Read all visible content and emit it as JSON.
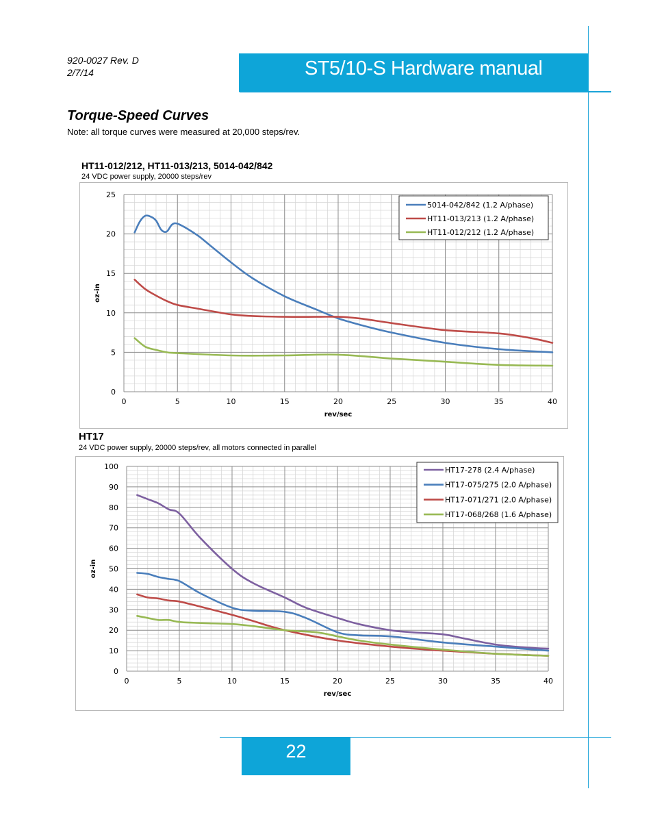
{
  "header": {
    "doc_number": "920-0027 Rev. D",
    "doc_date": "2/7/14",
    "title": "ST5/10-S Hardware manual"
  },
  "section": {
    "title": "Torque-Speed Curves",
    "note": "Note:  all torque curves were measured at 20,000 steps/rev."
  },
  "footer": {
    "page_number": "22"
  },
  "colors": {
    "accent": "#0ea5d8",
    "blue": "#4a7ebb",
    "red": "#be4b48",
    "green": "#98b954",
    "purple": "#7d60a0"
  },
  "chart_data": [
    {
      "type": "line",
      "title": "HT11-012/212, HT11-013/213, 5014-042/842",
      "subtitle": "24 VDC power supply, 20000 steps/rev",
      "xlabel": "rev/sec",
      "ylabel": "oz-in",
      "xlim": [
        0,
        40
      ],
      "ylim": [
        0,
        25
      ],
      "xticks": [
        0,
        5,
        10,
        15,
        20,
        25,
        30,
        35,
        40
      ],
      "yticks": [
        0,
        5,
        10,
        15,
        20,
        25
      ],
      "grid": true,
      "legend": "top-right",
      "series": [
        {
          "name": "5014-042/842 (1.2 A/phase)",
          "color": "#4a7ebb",
          "x": [
            1,
            1.5,
            2,
            2.5,
            3,
            3.5,
            4,
            4.5,
            5,
            6,
            7,
            8,
            10,
            12,
            15,
            18,
            20,
            22,
            25,
            30,
            35,
            40
          ],
          "y": [
            20.2,
            21.6,
            22.3,
            22.2,
            21.7,
            20.5,
            20.3,
            21.2,
            21.3,
            20.6,
            19.7,
            18.6,
            16.4,
            14.4,
            12.1,
            10.4,
            9.3,
            8.5,
            7.5,
            6.2,
            5.4,
            5.0
          ]
        },
        {
          "name": "HT11-013/213 (1.2 A/phase)",
          "color": "#be4b48",
          "x": [
            1,
            2,
            3,
            4,
            5,
            7,
            10,
            12,
            15,
            18,
            20,
            22,
            25,
            30,
            35,
            38,
            40
          ],
          "y": [
            14.2,
            13.0,
            12.2,
            11.5,
            11.0,
            10.5,
            9.8,
            9.6,
            9.5,
            9.5,
            9.5,
            9.3,
            8.7,
            7.8,
            7.4,
            6.8,
            6.2
          ]
        },
        {
          "name": "HT11-012/212 (1.2 A/phase)",
          "color": "#98b954",
          "x": [
            1,
            2,
            3,
            4,
            5,
            10,
            15,
            20,
            25,
            30,
            35,
            40
          ],
          "y": [
            6.8,
            5.7,
            5.3,
            5.0,
            4.9,
            4.6,
            4.6,
            4.7,
            4.2,
            3.8,
            3.4,
            3.3
          ]
        }
      ]
    },
    {
      "type": "line",
      "title": "HT17",
      "subtitle": "24 VDC power supply, 20000 steps/rev, all motors connected in parallel",
      "xlabel": "rev/sec",
      "ylabel": "oz-in",
      "xlim": [
        0,
        40
      ],
      "ylim": [
        0,
        100
      ],
      "xticks": [
        0,
        5,
        10,
        15,
        20,
        25,
        30,
        35,
        40
      ],
      "yticks": [
        0,
        10,
        20,
        30,
        40,
        50,
        60,
        70,
        80,
        90,
        100
      ],
      "grid": true,
      "legend": "top-right",
      "series": [
        {
          "name": "HT17-278 (2.4 A/phase)",
          "color": "#7d60a0",
          "x": [
            1,
            2,
            3,
            4,
            5,
            7,
            10,
            12,
            15,
            17,
            20,
            22,
            25,
            27,
            30,
            32,
            35,
            38,
            40
          ],
          "y": [
            86,
            84,
            82,
            79,
            77,
            65,
            50,
            43,
            36,
            31,
            26,
            23,
            20,
            19,
            18,
            16,
            13,
            11.5,
            11
          ]
        },
        {
          "name": "HT17-075/275 (2.0 A/phase)",
          "color": "#4a7ebb",
          "x": [
            1,
            2,
            3,
            4,
            5,
            7,
            10,
            12,
            15,
            17,
            20,
            22,
            25,
            30,
            35,
            40
          ],
          "y": [
            48,
            47.5,
            46,
            45,
            44,
            38,
            31,
            29.5,
            29,
            26,
            19,
            17.5,
            17,
            14,
            12,
            10
          ]
        },
        {
          "name": "HT17-071/271 (2.0 A/phase)",
          "color": "#be4b48",
          "x": [
            1,
            2,
            3,
            4,
            5,
            7,
            10,
            12,
            15,
            20,
            25,
            30,
            35,
            40
          ],
          "y": [
            37.5,
            36,
            35.5,
            34.5,
            34,
            31.5,
            27.5,
            24.5,
            20,
            15,
            12,
            10,
            8.5,
            7.5
          ]
        },
        {
          "name": "HT17-068/268 (1.6 A/phase)",
          "color": "#98b954",
          "x": [
            1,
            2,
            3,
            4,
            5,
            7,
            10,
            12,
            15,
            18,
            20,
            22,
            25,
            30,
            35,
            40
          ],
          "y": [
            27,
            26,
            25,
            25,
            24,
            23.5,
            23,
            22,
            20,
            19,
            17,
            15,
            13,
            10.5,
            8.5,
            7.5
          ]
        }
      ]
    }
  ]
}
